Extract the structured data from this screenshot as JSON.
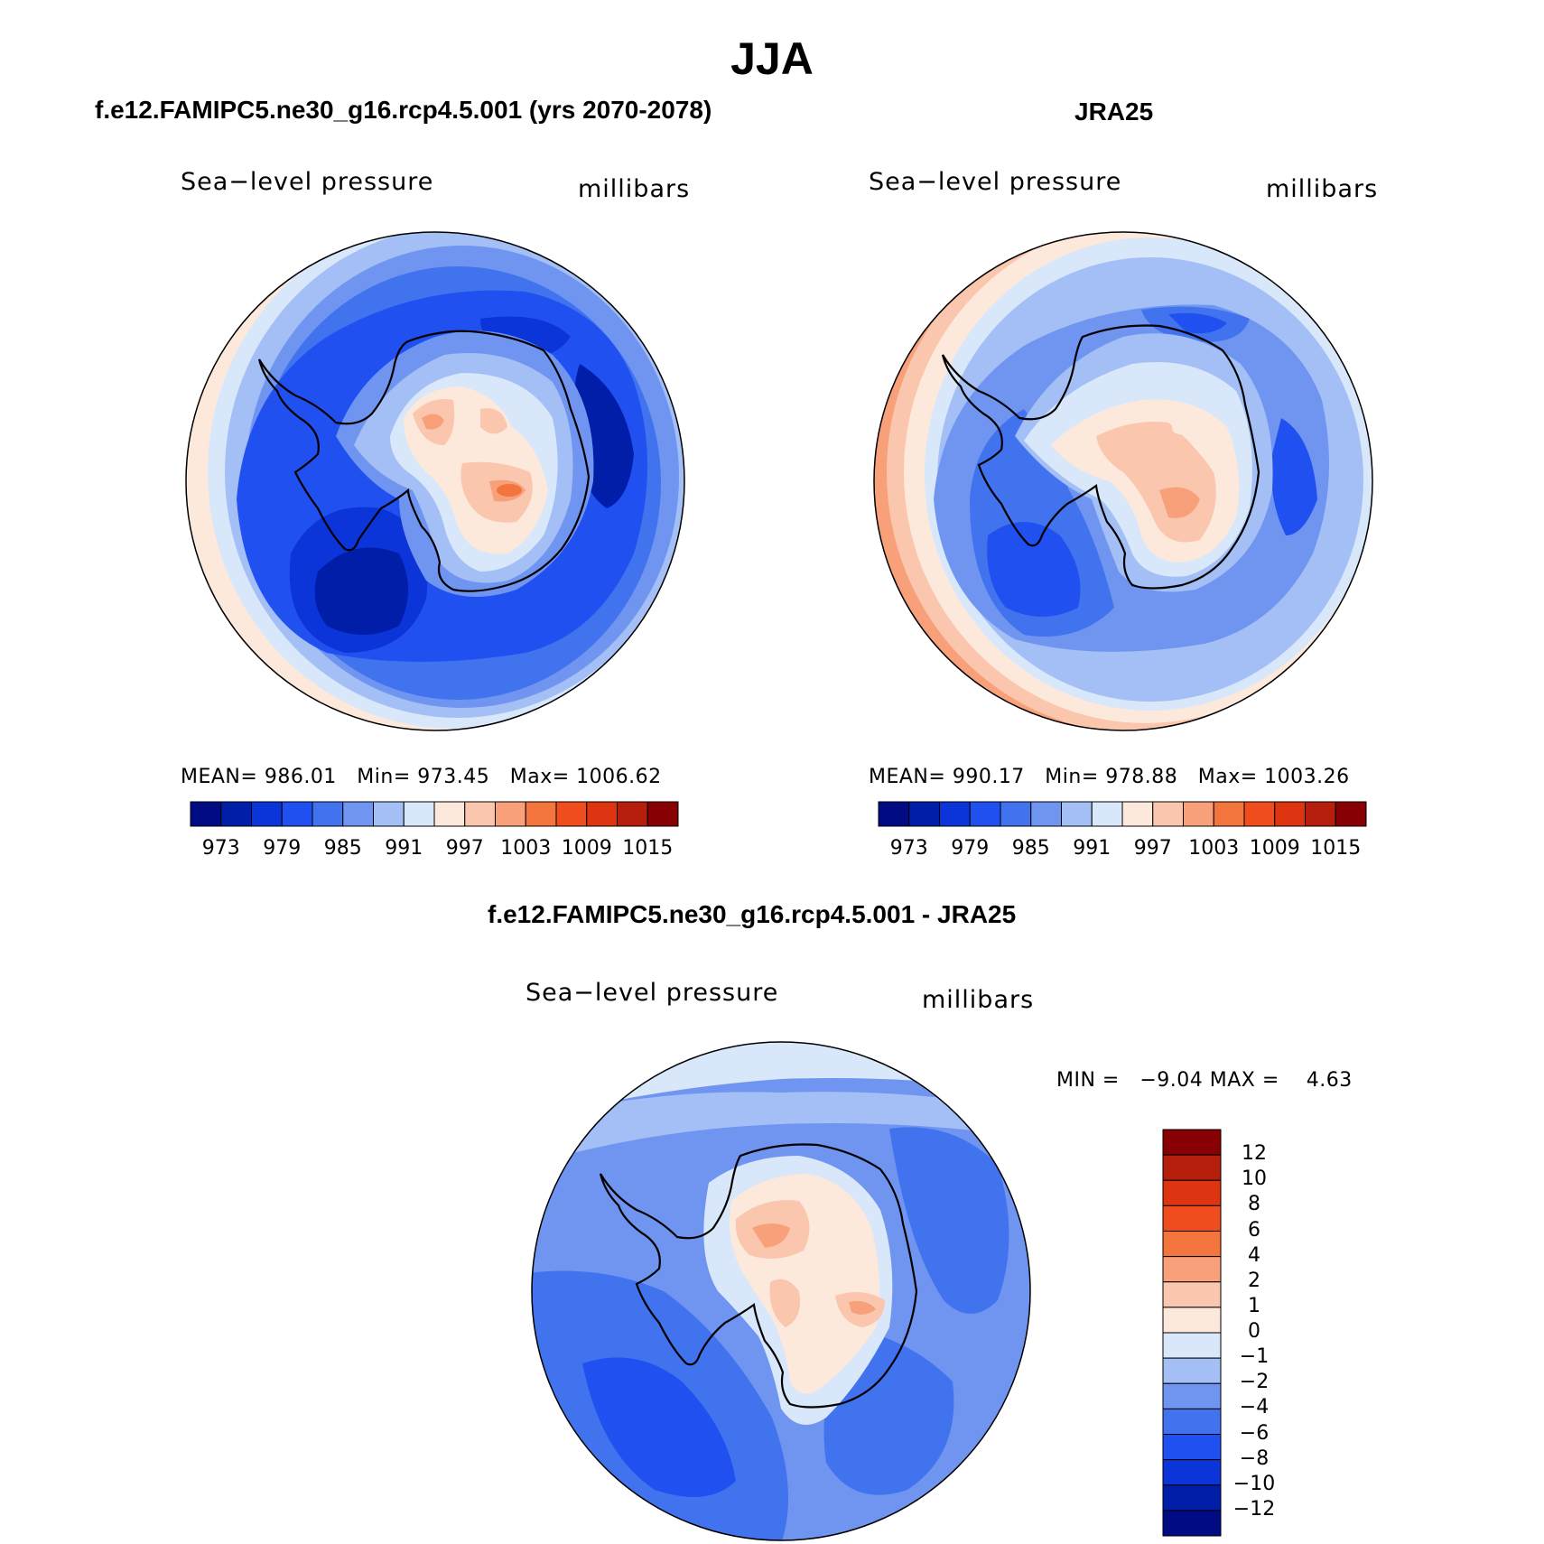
{
  "title": "JJA",
  "panels": [
    {
      "title": "f.e12.FAMIPC5.ne30_g16.rcp4.5.001 (yrs 2070-2078)",
      "variable": "Sea−level pressure",
      "units": "millibars",
      "stats": {
        "mean_label": "MEAN=",
        "mean": "986.01",
        "min_label": "Min=",
        "min": "973.45",
        "max_label": "Max=",
        "max": "1006.62"
      },
      "colorbar_labels": [
        "973",
        "979",
        "985",
        "991",
        "997",
        "1003",
        "1009",
        "1015"
      ]
    },
    {
      "title": "JRA25",
      "variable": "Sea−level pressure",
      "units": "millibars",
      "stats": {
        "mean_label": "MEAN=",
        "mean": "990.17",
        "min_label": "Min=",
        "min": "978.88",
        "max_label": "Max=",
        "max": "1003.26"
      },
      "colorbar_labels": [
        "973",
        "979",
        "985",
        "991",
        "997",
        "1003",
        "1009",
        "1015"
      ]
    }
  ],
  "difference": {
    "title": "f.e12.FAMIPC5.ne30_g16.rcp4.5.001 - JRA25",
    "variable": "Sea−level pressure",
    "units": "millibars",
    "min_label": "MIN =",
    "min": "−9.04",
    "max_label": "MAX =",
    "max": "4.63",
    "colorbar_labels": [
      "12",
      "10",
      "8",
      "6",
      "4",
      "2",
      "1",
      "0",
      "−1",
      "−2",
      "−4",
      "−6",
      "−8",
      "−10",
      "−12"
    ]
  },
  "colors": {
    "abs_scale": [
      "#000b84",
      "#001ea8",
      "#0c35d9",
      "#2150f0",
      "#4273ee",
      "#6f95f1",
      "#a3bff5",
      "#d8e7f9",
      "#fde9db",
      "#fac6ae",
      "#f7a07a",
      "#f4743e",
      "#f04c1d",
      "#dd3412",
      "#b51f0b",
      "#870003"
    ],
    "diff_scale": [
      "#870003",
      "#b51f0b",
      "#dd3412",
      "#f04c1d",
      "#f4743e",
      "#f7a07a",
      "#fac6ae",
      "#fde9db",
      "#d8e7f9",
      "#a3bff5",
      "#6f95f1",
      "#4273ee",
      "#2150f0",
      "#0c35d9",
      "#001ea8",
      "#000b84"
    ]
  },
  "chart_data": [
    {
      "type": "heatmap",
      "projection": "south-polar-stereographic",
      "title": "f.e12.FAMIPC5.ne30_g16.rcp4.5.001 (yrs 2070-2078)",
      "variable": "Sea-level pressure",
      "units": "millibars",
      "mean": 986.01,
      "min": 973.45,
      "max": 1006.62,
      "contour_levels": [
        973,
        976,
        979,
        982,
        985,
        988,
        991,
        994,
        997,
        1000,
        1003,
        1006,
        1009,
        1012,
        1015
      ]
    },
    {
      "type": "heatmap",
      "projection": "south-polar-stereographic",
      "title": "JRA25",
      "variable": "Sea-level pressure",
      "units": "millibars",
      "mean": 990.17,
      "min": 978.88,
      "max": 1003.26,
      "contour_levels": [
        973,
        976,
        979,
        982,
        985,
        988,
        991,
        994,
        997,
        1000,
        1003,
        1006,
        1009,
        1012,
        1015
      ]
    },
    {
      "type": "heatmap",
      "projection": "south-polar-stereographic",
      "title": "f.e12.FAMIPC5.ne30_g16.rcp4.5.001 - JRA25",
      "variable": "Sea-level pressure",
      "units": "millibars",
      "min": -9.04,
      "max": 4.63,
      "contour_levels": [
        -12,
        -10,
        -8,
        -6,
        -4,
        -2,
        -1,
        0,
        1,
        2,
        4,
        6,
        8,
        10,
        12
      ]
    }
  ]
}
